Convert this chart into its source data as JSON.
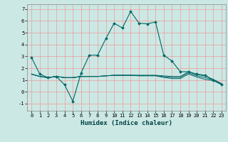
{
  "xlabel": "Humidex (Indice chaleur)",
  "bg_color": "#cce8e4",
  "grid_color": "#ee9999",
  "line_color": "#006666",
  "xlim": [
    -0.5,
    23.5
  ],
  "ylim": [
    -1.6,
    7.4
  ],
  "xticks": [
    0,
    1,
    2,
    3,
    4,
    5,
    6,
    7,
    8,
    9,
    10,
    11,
    12,
    13,
    14,
    15,
    16,
    17,
    18,
    19,
    20,
    21,
    22,
    23
  ],
  "yticks": [
    -1,
    0,
    1,
    2,
    3,
    4,
    5,
    6,
    7
  ],
  "series_main": {
    "x": [
      0,
      1,
      2,
      3,
      4,
      5,
      6,
      7,
      8,
      9,
      10,
      11,
      12,
      13,
      14,
      15,
      16,
      17,
      18,
      19,
      20,
      21,
      22,
      23
    ],
    "y": [
      2.9,
      1.5,
      1.2,
      1.3,
      0.6,
      -0.8,
      1.6,
      3.1,
      3.1,
      4.5,
      5.8,
      5.4,
      6.8,
      5.8,
      5.75,
      5.9,
      3.1,
      2.6,
      1.7,
      1.7,
      1.5,
      1.4,
      1.0,
      0.65
    ]
  },
  "series_flat": [
    [
      1.5,
      1.3,
      1.2,
      1.3,
      1.2,
      1.2,
      1.3,
      1.3,
      1.3,
      1.35,
      1.4,
      1.4,
      1.4,
      1.4,
      1.4,
      1.4,
      1.35,
      1.3,
      1.3,
      1.7,
      1.45,
      1.35,
      1.05,
      0.7
    ],
    [
      1.5,
      1.3,
      1.2,
      1.3,
      1.2,
      1.2,
      1.3,
      1.3,
      1.3,
      1.35,
      1.4,
      1.4,
      1.4,
      1.38,
      1.38,
      1.38,
      1.28,
      1.22,
      1.22,
      1.6,
      1.35,
      1.2,
      1.0,
      0.65
    ],
    [
      1.5,
      1.3,
      1.2,
      1.3,
      1.2,
      1.2,
      1.3,
      1.3,
      1.3,
      1.35,
      1.4,
      1.4,
      1.4,
      1.35,
      1.35,
      1.35,
      1.22,
      1.12,
      1.12,
      1.5,
      1.25,
      1.05,
      0.95,
      0.6
    ]
  ]
}
